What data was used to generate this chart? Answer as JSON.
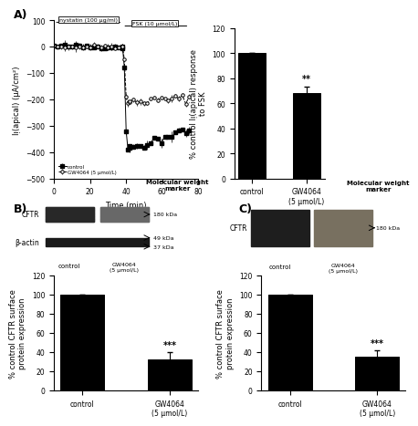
{
  "panel_A_line": {
    "title_label1": "nystatin (100 μg/ml)",
    "title_label2": "FSK (10 μmol/L)",
    "xlabel": "Time (min)",
    "ylabel": "Iᴉ(apical) (μA/cm²)",
    "xlim": [
      0,
      80
    ],
    "ylim": [
      -500,
      100
    ],
    "xticks": [
      0,
      20,
      40,
      60,
      80
    ],
    "yticks": [
      -500,
      -400,
      -300,
      -200,
      -100,
      0,
      100
    ],
    "legend_control": "control",
    "legend_gw": "GW4064 (5 μmol/L)"
  },
  "panel_A_bar": {
    "categories": [
      "control",
      "GW4064\n(5 μmol/L)"
    ],
    "values": [
      100,
      68
    ],
    "errors": [
      0,
      5
    ],
    "ylabel": "% control Iᴉ(apical) response\nto FSK",
    "ylim": [
      0,
      120
    ],
    "yticks": [
      0,
      20,
      40,
      60,
      80,
      100,
      120
    ],
    "bar_color": "black",
    "sig_label": "**"
  },
  "panel_B_bar": {
    "categories": [
      "control",
      "GW4064\n(5 μmol/L)"
    ],
    "values": [
      100,
      32
    ],
    "errors": [
      0,
      8
    ],
    "ylabel": "% control CFTR surface\nprotein expression",
    "ylim": [
      0,
      120
    ],
    "yticks": [
      0,
      20,
      40,
      60,
      80,
      100,
      120
    ],
    "bar_color": "black",
    "sig_label": "***",
    "wb_labels_cftr": "CFTR",
    "wb_labels_bactin": "β-actin",
    "wb_markers": [
      "180 kDa",
      "49 kDa",
      "37 kDa"
    ],
    "mw_title": "Molecular weight\nmarker"
  },
  "panel_C_bar": {
    "categories": [
      "control",
      "GW4064\n(5 μmol/L)"
    ],
    "values": [
      100,
      35
    ],
    "errors": [
      0,
      7
    ],
    "ylabel": "% control CFTR surface\nprotein expression",
    "ylim": [
      0,
      120
    ],
    "yticks": [
      0,
      20,
      40,
      60,
      80,
      100,
      120
    ],
    "bar_color": "black",
    "sig_label": "***",
    "wb_labels_cftr": "CFTR",
    "wb_markers": [
      "180 kDa"
    ],
    "mw_title": "Molecular weight\nmarker"
  },
  "background_color": "#ffffff",
  "panel_labels": [
    "A)",
    "B)",
    "C)"
  ],
  "fontsize_axis": 6,
  "fontsize_tick": 5.5,
  "fontsize_panel_label": 9
}
